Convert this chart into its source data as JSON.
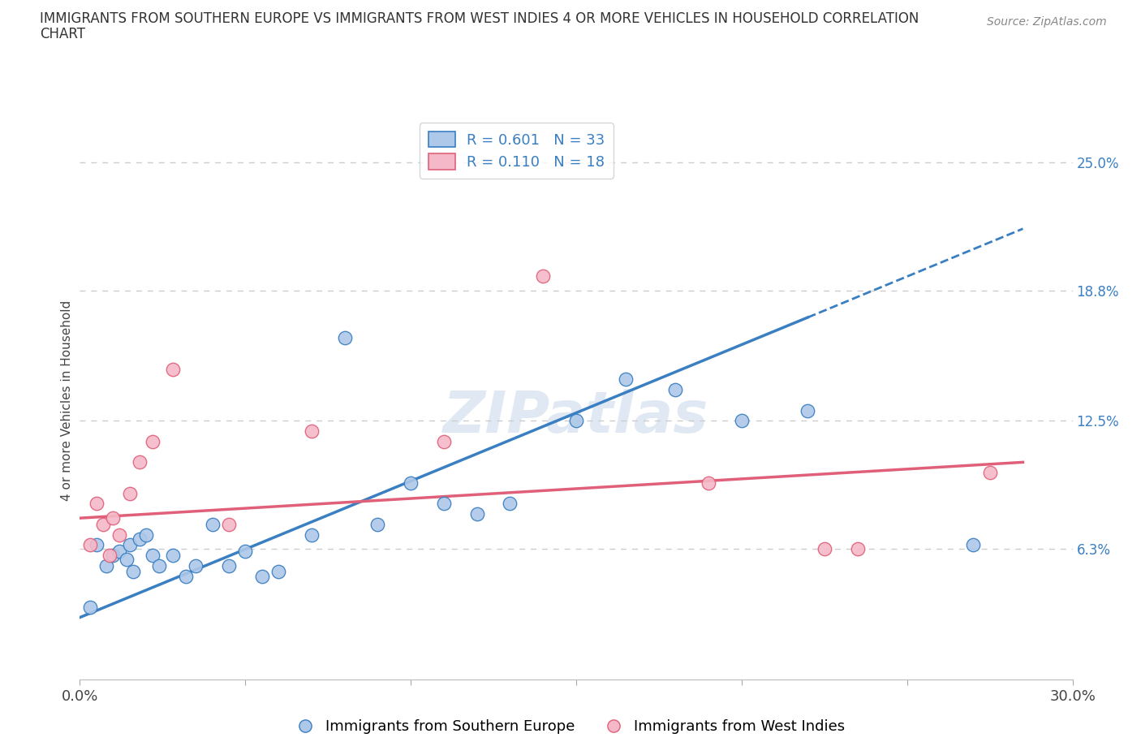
{
  "title_line1": "IMMIGRANTS FROM SOUTHERN EUROPE VS IMMIGRANTS FROM WEST INDIES 4 OR MORE VEHICLES IN HOUSEHOLD CORRELATION",
  "title_line2": "CHART",
  "source": "Source: ZipAtlas.com",
  "ylabel": "4 or more Vehicles in Household",
  "xlabel_blue": "Immigrants from Southern Europe",
  "xlabel_pink": "Immigrants from West Indies",
  "R_blue": 0.601,
  "N_blue": 33,
  "R_pink": 0.11,
  "N_pink": 18,
  "xlim": [
    0.0,
    30.0
  ],
  "ylim": [
    0.0,
    27.0
  ],
  "yticks_right": [
    6.3,
    12.5,
    18.8,
    25.0
  ],
  "ytick_labels_right": [
    "6.3%",
    "12.5%",
    "18.8%",
    "25.0%"
  ],
  "color_blue": "#adc8e8",
  "color_pink": "#f5b8c8",
  "line_blue": "#3a7fc1",
  "line_pink": "#e0607a",
  "blue_scatter_x": [
    0.3,
    0.5,
    0.8,
    1.0,
    1.2,
    1.4,
    1.5,
    1.6,
    1.8,
    2.0,
    2.2,
    2.4,
    2.8,
    3.2,
    3.5,
    4.0,
    4.5,
    5.0,
    5.5,
    6.0,
    7.0,
    8.0,
    9.0,
    10.0,
    11.0,
    12.0,
    13.0,
    15.0,
    16.5,
    18.0,
    20.0,
    22.0,
    27.0
  ],
  "blue_scatter_y": [
    3.5,
    6.5,
    5.5,
    6.0,
    6.2,
    5.8,
    6.5,
    5.2,
    6.8,
    7.0,
    6.0,
    5.5,
    6.0,
    5.0,
    5.5,
    7.5,
    5.5,
    6.2,
    5.0,
    5.2,
    7.0,
    16.5,
    7.5,
    9.5,
    8.5,
    8.0,
    8.5,
    12.5,
    14.5,
    14.0,
    12.5,
    13.0,
    6.5
  ],
  "pink_scatter_x": [
    0.3,
    0.5,
    0.7,
    0.9,
    1.0,
    1.2,
    1.5,
    1.8,
    2.2,
    2.8,
    4.5,
    7.0,
    11.0,
    14.0,
    19.0,
    22.5,
    23.5,
    27.5
  ],
  "pink_scatter_y": [
    6.5,
    8.5,
    7.5,
    6.0,
    7.8,
    7.0,
    9.0,
    10.5,
    11.5,
    15.0,
    7.5,
    12.0,
    11.5,
    19.5,
    9.5,
    6.3,
    6.3,
    10.0
  ],
  "blue_trend_x0": 0.0,
  "blue_trend_y0": 3.0,
  "blue_trend_x1": 22.0,
  "blue_trend_y1": 17.5,
  "blue_dash_x0": 22.0,
  "blue_dash_x1": 28.5,
  "pink_trend_x0": 0.0,
  "pink_trend_y0": 7.8,
  "pink_trend_x1": 28.5,
  "pink_trend_y1": 10.5,
  "watermark_text": "ZIPatlas",
  "bg_color": "#ffffff",
  "grid_color": "#cccccc"
}
